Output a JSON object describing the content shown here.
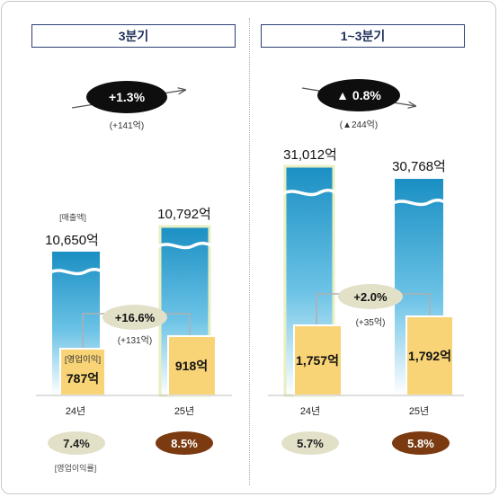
{
  "panels": [
    {
      "title": "3분기",
      "change_label": "+1.3%",
      "change_sub": "(+141억)",
      "sales_legend": "[매출액]",
      "op_profit_change": "+16.6%",
      "op_profit_change_sub": "(+131억)",
      "op_profit_legend": "[영업이익]",
      "margin_legend": "[영업이익률]"
    },
    {
      "title": "1~3분기",
      "change_label": "▲ 0.8%",
      "change_sub": "(▲244억)",
      "op_profit_change": "+2.0%",
      "op_profit_change_sub": "(+35억)"
    }
  ],
  "colors": {
    "sales_bar_top": "#1a8fc3",
    "sales_bar_bottom": "#ffffff",
    "op_profit_bar": "#f8d477",
    "margin_prev": "#e3e0c8",
    "margin_curr": "#7b3a10",
    "title_border": "#2b3f73"
  },
  "chart_data": [
    {
      "type": "bar",
      "title": "3분기",
      "categories": [
        "24년",
        "25년"
      ],
      "series": [
        {
          "name": "매출액",
          "values": [
            10650,
            10792
          ],
          "labels": [
            "10,650억",
            "10,792억"
          ]
        },
        {
          "name": "영업이익",
          "values": [
            787,
            918
          ],
          "labels": [
            "787억",
            "918억"
          ]
        },
        {
          "name": "영업이익률",
          "values": [
            7.4,
            8.5
          ],
          "labels": [
            "7.4%",
            "8.5%"
          ]
        }
      ]
    },
    {
      "type": "bar",
      "title": "1~3분기",
      "categories": [
        "24년",
        "25년"
      ],
      "series": [
        {
          "name": "매출액",
          "values": [
            31012,
            30768
          ],
          "labels": [
            "31,012억",
            "30,768억"
          ]
        },
        {
          "name": "영업이익",
          "values": [
            1757,
            1792
          ],
          "labels": [
            "1,757억",
            "1,792억"
          ]
        },
        {
          "name": "영업이익률",
          "values": [
            5.7,
            5.8
          ],
          "labels": [
            "5.7%",
            "5.8%"
          ]
        }
      ]
    }
  ]
}
